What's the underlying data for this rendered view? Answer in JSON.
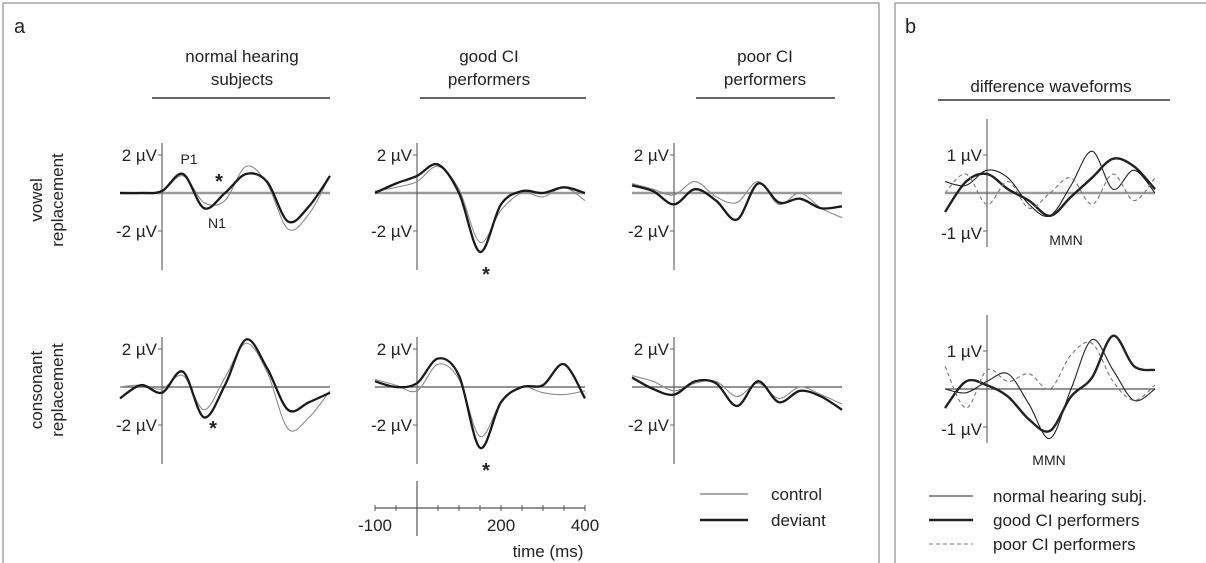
{
  "panels": {
    "a": {
      "letter": "a",
      "group_headers": [
        "normal hearing\nsubjects",
        "good CI\nperformers",
        "poor CI\nperformers"
      ],
      "row_labels": [
        "vowel\nreplacement",
        "consonant\nreplacement"
      ],
      "y_tick_pos": "2 µV",
      "y_tick_neg": "-2 µV",
      "component_labels": {
        "p1": "P1",
        "n1": "N1"
      },
      "significance": "*",
      "time_axis": {
        "ticks": [
          "-100",
          "200",
          "400"
        ],
        "label": "time (ms)"
      },
      "legend": [
        {
          "label": "control",
          "color": "#8c8c8c"
        },
        {
          "label": "deviant",
          "color": "#1a1a1a"
        }
      ]
    },
    "b": {
      "letter": "b",
      "header": "difference waveforms",
      "y_tick_pos": "1 µV",
      "y_tick_neg": "-1 µV",
      "mmn_label": "MMN",
      "legend": [
        {
          "label": "normal hearing subj.",
          "style": "thin"
        },
        {
          "label": "good CI performers",
          "style": "thick"
        },
        {
          "label": "poor CI performers",
          "style": "dashed"
        }
      ]
    }
  },
  "chart_data": [
    {
      "type": "line",
      "id": "erp-waveforms",
      "x": [
        -100,
        -50,
        0,
        50,
        100,
        150,
        200,
        250,
        300,
        350,
        400
      ],
      "xlim": [
        -100,
        400
      ],
      "ylim": [
        -3.2,
        2.6
      ],
      "plots": [
        {
          "row": "vowel replacement",
          "group": "normal hearing subjects",
          "series": [
            {
              "name": "control",
              "values": [
                0,
                0,
                0.1,
                0.9,
                -0.5,
                -0.4,
                1.4,
                0.5,
                -1.9,
                -1.1,
                0.9
              ]
            },
            {
              "name": "deviant",
              "values": [
                0,
                0,
                0.1,
                1.0,
                -0.8,
                0.0,
                1.0,
                0.6,
                -1.5,
                -0.7,
                0.9
              ]
            }
          ]
        },
        {
          "row": "vowel replacement",
          "group": "good CI performers",
          "series": [
            {
              "name": "control",
              "values": [
                0.1,
                0.3,
                0.6,
                1.4,
                0.2,
                -2.6,
                -0.9,
                0.0,
                -0.2,
                0.3,
                -0.4
              ]
            },
            {
              "name": "deviant",
              "values": [
                0.0,
                0.5,
                0.9,
                1.5,
                0.0,
                -3.1,
                -0.6,
                0.1,
                0.0,
                0.3,
                0.0
              ]
            }
          ]
        },
        {
          "row": "vowel replacement",
          "group": "poor CI performers",
          "series": [
            {
              "name": "control",
              "values": [
                0.5,
                0.2,
                -0.1,
                0.6,
                -0.2,
                -0.5,
                0.6,
                -0.6,
                0.0,
                -0.8,
                -1.3
              ]
            },
            {
              "name": "deviant",
              "values": [
                0.4,
                0.1,
                -0.6,
                0.2,
                -0.4,
                -1.4,
                0.5,
                -0.5,
                -0.3,
                -0.8,
                -0.7
              ]
            }
          ]
        },
        {
          "row": "consonant replacement",
          "group": "normal hearing subjects",
          "series": [
            {
              "name": "control",
              "values": [
                0,
                0.1,
                -0.1,
                0.6,
                -1.2,
                0.5,
                2.3,
                0.8,
                -2.2,
                -1.6,
                -0.2
              ]
            },
            {
              "name": "deviant",
              "values": [
                -0.6,
                0.1,
                -0.3,
                0.8,
                -1.6,
                0.1,
                2.5,
                1.0,
                -1.2,
                -0.8,
                -0.3
              ]
            }
          ]
        },
        {
          "row": "consonant replacement",
          "group": "good CI performers",
          "series": [
            {
              "name": "control",
              "values": [
                0.4,
                0.1,
                -0.2,
                1.2,
                0.4,
                -2.6,
                -0.8,
                0.0,
                -0.3,
                -0.4,
                -0.2
              ]
            },
            {
              "name": "deviant",
              "values": [
                0.3,
                0.0,
                0.2,
                1.5,
                0.6,
                -3.2,
                -0.8,
                0.0,
                0.1,
                1.2,
                -0.6
              ]
            }
          ]
        },
        {
          "row": "consonant replacement",
          "group": "poor CI performers",
          "series": [
            {
              "name": "control",
              "values": [
                0.6,
                0.3,
                -0.2,
                0.2,
                0.3,
                -0.5,
                0.2,
                -0.6,
                0.0,
                -0.4,
                -0.9
              ]
            },
            {
              "name": "deviant",
              "values": [
                0.5,
                -0.1,
                -0.4,
                0.3,
                0.2,
                -1.0,
                0.3,
                -0.8,
                -0.2,
                -0.5,
                -1.2
              ]
            }
          ]
        }
      ]
    },
    {
      "type": "line",
      "id": "difference-waveforms",
      "x": [
        -100,
        -50,
        0,
        50,
        100,
        150,
        200,
        250,
        300,
        350,
        400
      ],
      "xlim": [
        -100,
        400
      ],
      "ylim": [
        -1.4,
        1.6
      ],
      "plots": [
        {
          "row": "vowel replacement",
          "series": [
            {
              "name": "normal hearing subj.",
              "values": [
                0.3,
                0.2,
                0.6,
                0.4,
                -0.3,
                -0.6,
                0.2,
                1.1,
                0.1,
                0.6,
                0.0
              ]
            },
            {
              "name": "good CI performers",
              "values": [
                -0.5,
                0.3,
                0.5,
                0.1,
                -0.2,
                -0.6,
                -0.1,
                0.4,
                0.9,
                0.7,
                0.1
              ]
            },
            {
              "name": "poor CI performers",
              "values": [
                0.0,
                0.5,
                -0.3,
                0.3,
                -0.4,
                0.0,
                0.4,
                -0.3,
                0.5,
                -0.2,
                0.4
              ]
            }
          ]
        },
        {
          "row": "consonant replacement",
          "series": [
            {
              "name": "normal hearing subj.",
              "values": [
                0.0,
                -0.1,
                0.2,
                0.4,
                -0.4,
                -1.3,
                0.0,
                1.3,
                0.5,
                -0.3,
                0.0
              ]
            },
            {
              "name": "good CI performers",
              "values": [
                -0.5,
                0.2,
                0.1,
                -0.2,
                -0.8,
                -1.1,
                -0.2,
                0.3,
                1.4,
                0.6,
                0.5
              ]
            },
            {
              "name": "poor CI performers",
              "values": [
                0.6,
                -0.5,
                0.5,
                0.2,
                0.4,
                0.0,
                0.9,
                1.2,
                0.2,
                -0.3,
                0.1
              ]
            }
          ]
        }
      ]
    }
  ]
}
